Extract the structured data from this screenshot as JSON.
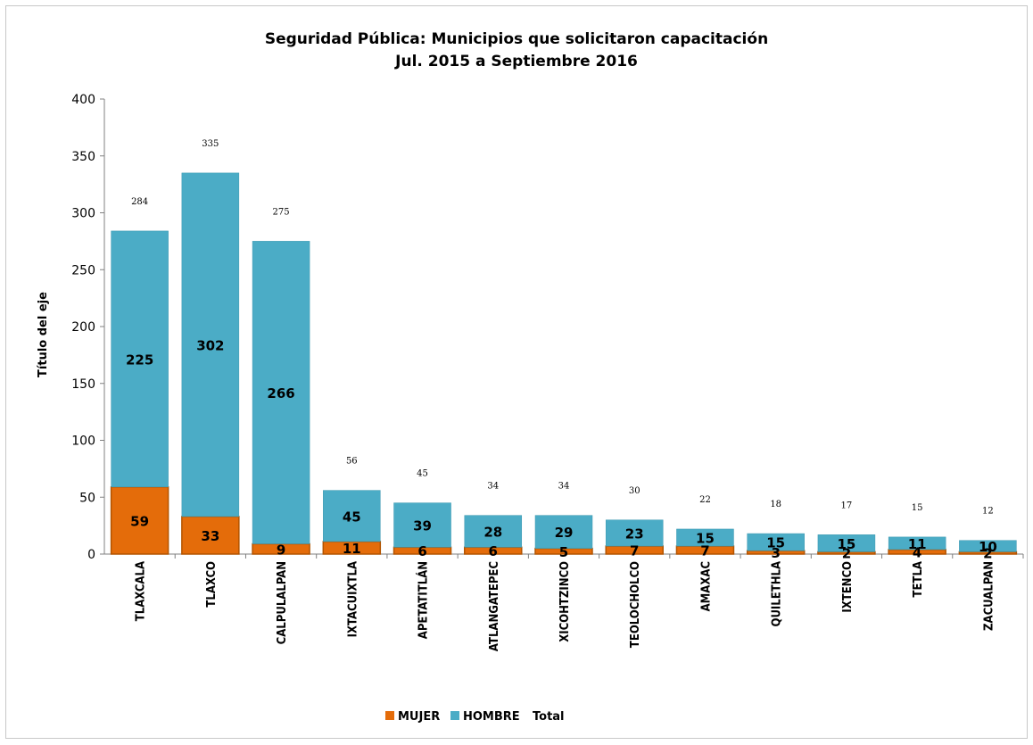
{
  "chart_data": {
    "type": "bar",
    "stacked": true,
    "title": "Seguridad Pública: Municipios que solicitaron capacitación",
    "subtitle": "Jul. 2015 a Septiembre 2016",
    "ylabel": "Título del eje",
    "ylim": [
      0,
      400
    ],
    "yticks": [
      0,
      50,
      100,
      150,
      200,
      250,
      300,
      350,
      400
    ],
    "categories": [
      "TLAXCALA",
      "TLAXCO",
      "CALPULALPAN",
      "IXTACUIXTLA",
      "APETATITLÁN",
      "ATLANGATEPEC",
      "XICOHTZINCO",
      "TEOLOCHOLCO",
      "AMAXAC",
      "QUILETHLA",
      "IXTENCO",
      "TETLA",
      "ZACUALPAN"
    ],
    "series": [
      {
        "name": "MUJER",
        "color": "#e46c0a",
        "values": [
          59,
          33,
          9,
          11,
          6,
          6,
          5,
          7,
          7,
          3,
          2,
          4,
          2
        ]
      },
      {
        "name": "HOMBRE",
        "color": "#4bacc6",
        "values": [
          225,
          302,
          266,
          45,
          39,
          28,
          29,
          23,
          15,
          15,
          15,
          11,
          10
        ]
      },
      {
        "name": "Total",
        "values": [
          284,
          335,
          275,
          56,
          45,
          34,
          34,
          30,
          22,
          18,
          17,
          15,
          12
        ]
      }
    ],
    "grid": false,
    "legend_position": "bottom"
  }
}
